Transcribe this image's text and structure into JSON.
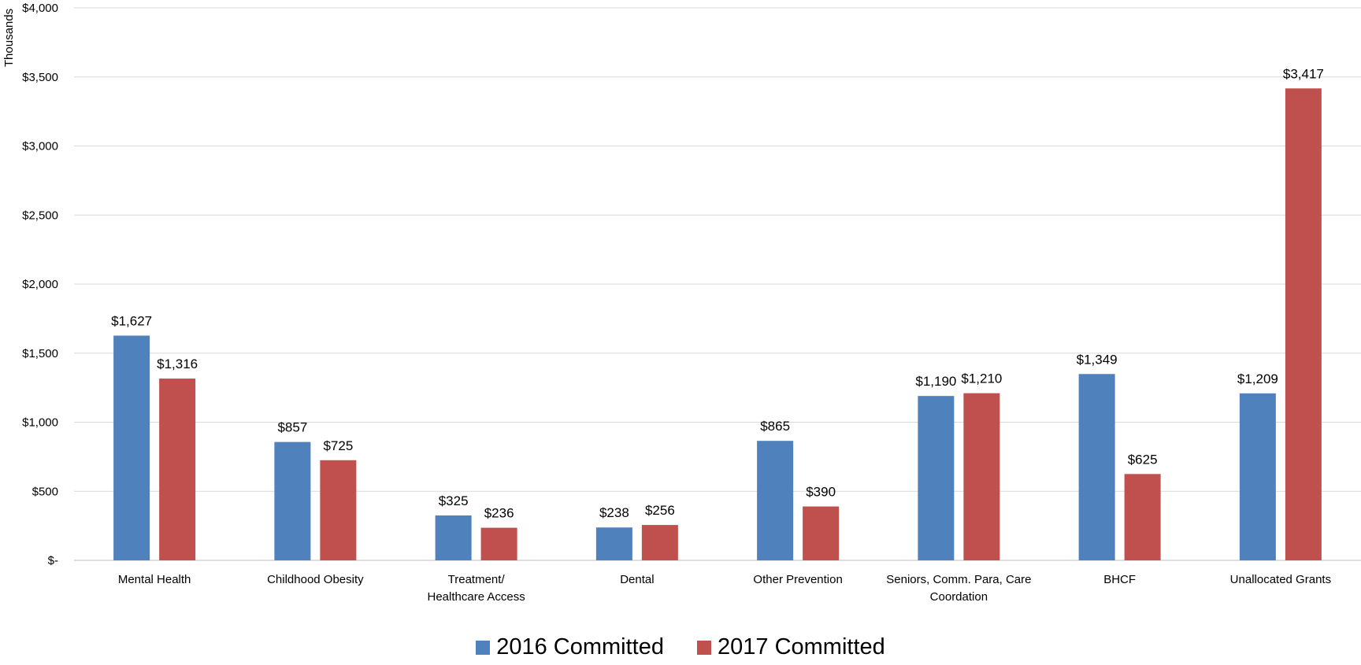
{
  "chart_data": {
    "type": "bar",
    "ylabel": "Thousands",
    "ylim": [
      0,
      4000
    ],
    "yticks": [
      0,
      500,
      1000,
      1500,
      2000,
      2500,
      3000,
      3500,
      4000
    ],
    "ytick_labels": [
      "$-",
      "$500",
      "$1,000",
      "$1,500",
      "$2,000",
      "$2,500",
      "$3,000",
      "$3,500",
      "$4,000"
    ],
    "grid": true,
    "legend_position": "bottom",
    "categories": [
      [
        "Mental Health"
      ],
      [
        "Childhood Obesity"
      ],
      [
        "Treatment/",
        "Healthcare Access"
      ],
      [
        "Dental"
      ],
      [
        "Other Prevention"
      ],
      [
        "Seniors, Comm. Para, Care",
        "Coordation"
      ],
      [
        "BHCF"
      ],
      [
        "Unallocated Grants"
      ]
    ],
    "series": [
      {
        "name": "2016 Committed",
        "color": "#4f81bd",
        "values": [
          1627,
          857,
          325,
          238,
          865,
          1190,
          1349,
          1209
        ],
        "labels": [
          "$1,627",
          "$857",
          "$325",
          "$238",
          "$865",
          "$1,190",
          "$1,349",
          "$1,209"
        ]
      },
      {
        "name": "2017 Committed",
        "color": "#c0504d",
        "values": [
          1316,
          725,
          236,
          256,
          390,
          1210,
          625,
          3417
        ],
        "labels": [
          "$1,316",
          "$725",
          "$236",
          "$256",
          "$390",
          "$1,210",
          "$625",
          "$3,417"
        ]
      }
    ]
  }
}
